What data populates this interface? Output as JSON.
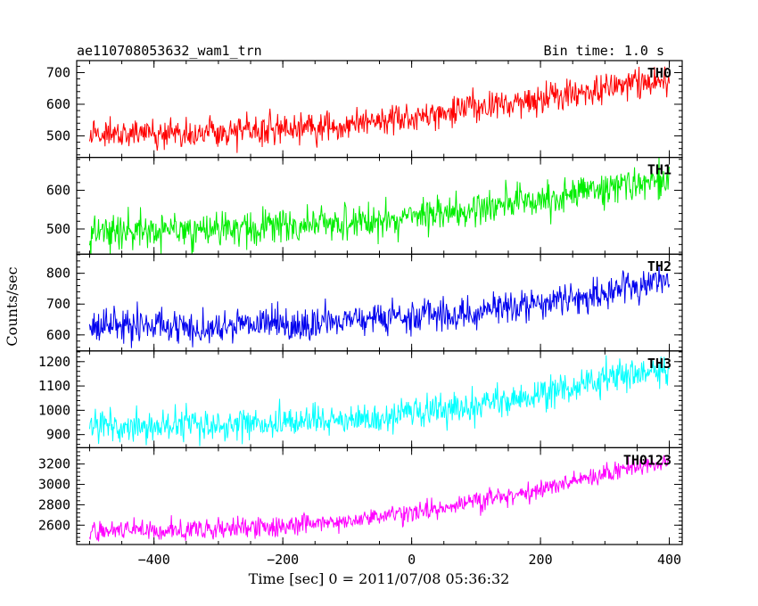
{
  "chart_data": {
    "type": "line",
    "title": "ae110708053632_wam1_trn",
    "subtitle": "Bin time: 1.0 s",
    "xlabel": "Time [sec] 0 = 2011/07/08 05:36:32",
    "ylabel": "Counts/sec",
    "xlim": [
      -520,
      420
    ],
    "x_ticks": [
      -400,
      -200,
      0,
      200,
      400
    ],
    "x_tick_labels": [
      "−400",
      "−200",
      "0",
      "200",
      "400"
    ],
    "x_range": [
      -500,
      400
    ],
    "panels": [
      {
        "name": "TH0",
        "color": "#ff0000",
        "ylim": [
          432,
          738
        ],
        "y_ticks": [
          500,
          600,
          700
        ],
        "y_tick_labels": [
          "500",
          "600",
          "700"
        ],
        "trend_x": [
          -500,
          -300,
          -100,
          0,
          100,
          200,
          300,
          400
        ],
        "trend_y": [
          505,
          510,
          530,
          560,
          590,
          615,
          650,
          675
        ],
        "noise_sd": 24
      },
      {
        "name": "TH1",
        "color": "#00ee00",
        "ylim": [
          435,
          685
        ],
        "y_ticks": [
          500,
          600
        ],
        "y_tick_labels": [
          "500",
          "600"
        ],
        "trend_x": [
          -500,
          -300,
          -100,
          0,
          100,
          200,
          300,
          400
        ],
        "trend_y": [
          495,
          500,
          515,
          530,
          550,
          575,
          605,
          625
        ],
        "noise_sd": 22
      },
      {
        "name": "TH2",
        "color": "#0000ee",
        "ylim": [
          548,
          862
        ],
        "y_ticks": [
          600,
          700,
          800
        ],
        "y_tick_labels": [
          "600",
          "700",
          "800"
        ],
        "trend_x": [
          -500,
          -300,
          -100,
          0,
          100,
          200,
          300,
          400
        ],
        "trend_y": [
          625,
          630,
          645,
          660,
          675,
          700,
          740,
          780
        ],
        "noise_sd": 26
      },
      {
        "name": "TH3",
        "color": "#00ffff",
        "ylim": [
          846,
          1244
        ],
        "y_ticks": [
          900,
          1000,
          1100,
          1200
        ],
        "y_tick_labels": [
          "900",
          "1000",
          "1100",
          "1200"
        ],
        "trend_x": [
          -500,
          -300,
          -100,
          0,
          100,
          200,
          300,
          400
        ],
        "trend_y": [
          935,
          940,
          960,
          985,
          1020,
          1070,
          1130,
          1170
        ],
        "noise_sd": 32
      },
      {
        "name": "TH0123",
        "color": "#ff00ff",
        "ylim": [
          2410,
          3360
        ],
        "y_ticks": [
          2600,
          2800,
          3000,
          3200
        ],
        "y_tick_labels": [
          "2600",
          "2800",
          "3000",
          "3200"
        ],
        "trend_x": [
          -500,
          -300,
          -100,
          0,
          100,
          200,
          300,
          400
        ],
        "trend_y": [
          2540,
          2560,
          2640,
          2730,
          2830,
          2950,
          3110,
          3230
        ],
        "noise_sd": 50
      }
    ]
  }
}
